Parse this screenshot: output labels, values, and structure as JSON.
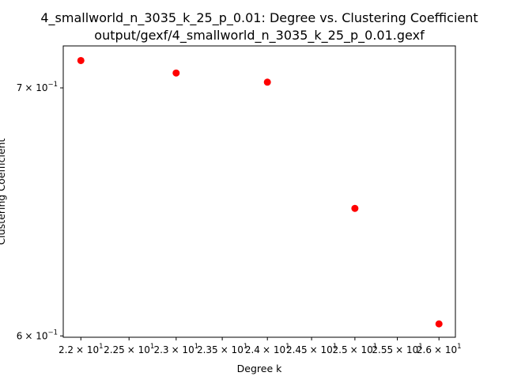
{
  "chart_data": {
    "type": "scatter",
    "title": "4_smallworld_n_3035_k_25_p_0.01: Degree vs. Clustering Coefficient",
    "subtitle": "output/gexf/4_smallworld_n_3035_k_25_p_0.01.gexf",
    "xlabel": "Degree k",
    "ylabel": "Clustering Coefficient",
    "xscale": "log",
    "yscale": "log",
    "xlim": [
      21.82,
      26.2
    ],
    "ylim": [
      0.5995,
      0.7185
    ],
    "grid": false,
    "legend": "none",
    "marker_color": "#ff0000",
    "x": [
      22,
      23,
      24,
      25,
      26
    ],
    "y": [
      0.712,
      0.7065,
      0.7025,
      0.6495,
      0.6045
    ],
    "x_ticks": [
      {
        "value": 22,
        "mantissa": "2.2",
        "base": "× 10",
        "exp": "1"
      },
      {
        "value": 22.5,
        "mantissa": "2.25",
        "base": "× 10",
        "exp": "1"
      },
      {
        "value": 23,
        "mantissa": "2.3",
        "base": "× 10",
        "exp": "1"
      },
      {
        "value": 23.5,
        "mantissa": "2.35",
        "base": "× 10",
        "exp": "1"
      },
      {
        "value": 24,
        "mantissa": "2.4",
        "base": "× 10",
        "exp": "1"
      },
      {
        "value": 24.5,
        "mantissa": "2.45",
        "base": "× 10",
        "exp": "1"
      },
      {
        "value": 25,
        "mantissa": "2.5",
        "base": "× 10",
        "exp": "1"
      },
      {
        "value": 25.5,
        "mantissa": "2.55",
        "base": "× 10",
        "exp": "1"
      },
      {
        "value": 26,
        "mantissa": "2.6",
        "base": "× 10",
        "exp": "1"
      }
    ],
    "y_ticks": [
      {
        "value": 0.7,
        "mantissa": "7",
        "base": "× 10",
        "exp": "−1"
      },
      {
        "value": 0.6,
        "mantissa": "6",
        "base": "× 10",
        "exp": "−1"
      }
    ]
  }
}
